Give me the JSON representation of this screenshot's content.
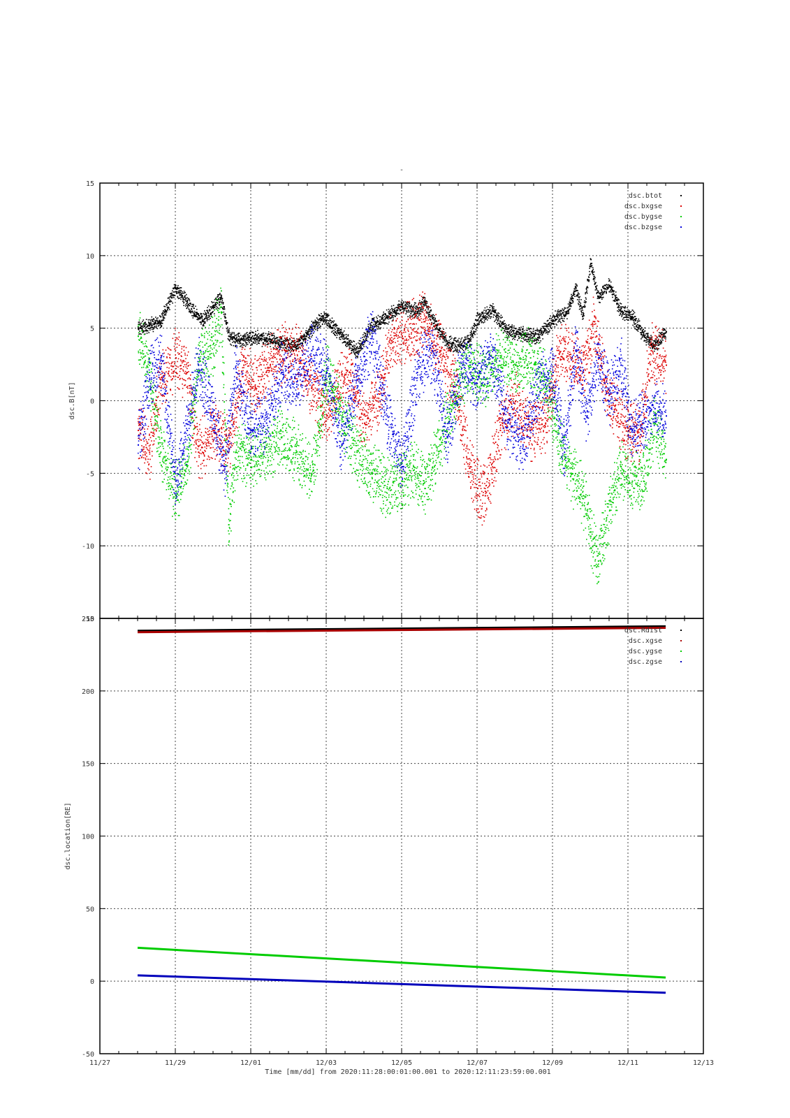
{
  "title_mark": "-",
  "x_axis": {
    "label": "Time [mm/dd]  from 2020:11:28:00:01:00.001  to  2020:12:11:23:59:00.001",
    "tick_labels": [
      "11/27",
      "11/29",
      "12/01",
      "12/03",
      "12/05",
      "12/07",
      "12/09",
      "12/11",
      "12/13"
    ],
    "tick_days": [
      0,
      2,
      4,
      6,
      8,
      10,
      12,
      14,
      16
    ],
    "range_days": [
      0,
      16
    ],
    "data_range_days": [
      1.0,
      15.0
    ]
  },
  "colors": {
    "black": "#000000",
    "red": "#dd0000",
    "green": "#00cc00",
    "blue": "#0000dd",
    "darkred": "#aa0000"
  },
  "chart_data": [
    {
      "type": "scatter",
      "panel": "top",
      "ylabel": "dsc.B[nT]",
      "ylim": [
        -15,
        15
      ],
      "yticks": [
        -15,
        -10,
        -5,
        0,
        5,
        10,
        15
      ],
      "grid": true,
      "legend_position": "top-right",
      "series": [
        {
          "name": "dsc.btot",
          "color": "#000000",
          "x_days": [
            1.0,
            1.3,
            1.6,
            2.0,
            2.3,
            2.7,
            3.0,
            3.2,
            3.4,
            3.6,
            3.8,
            4.0,
            4.4,
            4.8,
            5.2,
            5.6,
            5.9,
            6.0,
            6.4,
            6.8,
            7.2,
            7.5,
            7.8,
            8.0,
            8.4,
            8.6,
            8.9,
            9.2,
            9.5,
            9.8,
            10.0,
            10.4,
            10.8,
            11.2,
            11.6,
            12.0,
            12.4,
            12.6,
            12.8,
            13.0,
            13.2,
            13.5,
            13.8,
            14.1,
            14.4,
            14.7,
            15.0
          ],
          "values": [
            5.0,
            5.2,
            5.5,
            7.8,
            6.8,
            5.5,
            6.5,
            7.2,
            4.5,
            4.2,
            4.3,
            4.4,
            4.3,
            4.0,
            3.8,
            5.0,
            5.8,
            5.6,
            4.5,
            3.4,
            5.2,
            5.6,
            6.2,
            6.5,
            6.2,
            6.8,
            5.2,
            4.0,
            3.8,
            4.2,
            5.6,
            6.2,
            4.8,
            4.6,
            4.4,
            5.6,
            6.2,
            7.8,
            6.0,
            9.5,
            7.2,
            8.0,
            6.2,
            5.8,
            4.6,
            3.8,
            4.8
          ]
        },
        {
          "name": "dsc.bxgse",
          "color": "#dd0000",
          "x_days": [
            1.0,
            1.3,
            1.6,
            2.0,
            2.3,
            2.6,
            3.0,
            3.4,
            3.8,
            4.1,
            4.5,
            4.9,
            5.3,
            5.6,
            6.0,
            6.3,
            6.6,
            7.0,
            7.4,
            7.7,
            8.0,
            8.3,
            8.6,
            9.0,
            9.4,
            9.8,
            10.0,
            10.2,
            10.6,
            11.0,
            11.4,
            11.8,
            12.2,
            12.5,
            12.8,
            13.1,
            13.4,
            13.7,
            14.0,
            14.3,
            14.6,
            15.0
          ],
          "values": [
            -2.0,
            -3.5,
            1.5,
            3.0,
            2.0,
            -3.5,
            -2.0,
            -3.0,
            2.5,
            1.0,
            2.5,
            3.5,
            3.0,
            1.0,
            -1.0,
            1.0,
            2.0,
            -1.5,
            0.5,
            4.0,
            4.5,
            5.0,
            5.5,
            3.5,
            1.0,
            -4.5,
            -6.0,
            -6.5,
            -2.0,
            0.0,
            -2.0,
            -1.5,
            4.0,
            3.0,
            2.0,
            5.5,
            1.0,
            -1.0,
            -2.0,
            -2.5,
            3.5,
            2.5
          ]
        },
        {
          "name": "dsc.bygse",
          "color": "#00cc00",
          "x_days": [
            1.0,
            1.3,
            1.6,
            2.0,
            2.3,
            2.6,
            3.0,
            3.2,
            3.4,
            3.6,
            4.0,
            4.4,
            4.8,
            5.2,
            5.6,
            5.8,
            6.0,
            6.4,
            6.8,
            7.2,
            7.6,
            8.0,
            8.3,
            8.6,
            9.0,
            9.4,
            9.8,
            10.2,
            10.6,
            11.0,
            11.4,
            11.8,
            12.2,
            12.5,
            12.8,
            13.0,
            13.2,
            13.5,
            13.8,
            14.1,
            14.4,
            14.7,
            15.0
          ],
          "values": [
            4.5,
            2.0,
            -3.5,
            -6.5,
            -4.5,
            2.5,
            4.0,
            6.5,
            -8.5,
            -3.5,
            -4.0,
            -3.5,
            -2.5,
            -3.5,
            -5.0,
            -2.0,
            2.0,
            -1.0,
            -3.5,
            -5.0,
            -6.0,
            -5.5,
            -4.5,
            -6.0,
            -3.0,
            0.5,
            2.5,
            1.5,
            3.0,
            2.5,
            3.0,
            1.5,
            -3.0,
            -5.0,
            -6.5,
            -9.0,
            -11.0,
            -7.5,
            -4.5,
            -5.5,
            -5.5,
            -1.5,
            -4.0
          ]
        },
        {
          "name": "dsc.bzgse",
          "color": "#0000dd",
          "x_days": [
            1.0,
            1.3,
            1.6,
            2.0,
            2.3,
            2.6,
            3.0,
            3.3,
            3.6,
            4.0,
            4.4,
            4.8,
            5.2,
            5.6,
            6.0,
            6.4,
            6.8,
            7.2,
            7.6,
            8.0,
            8.4,
            8.8,
            9.2,
            9.6,
            10.0,
            10.4,
            10.8,
            11.2,
            11.6,
            12.0,
            12.3,
            12.6,
            12.9,
            13.2,
            13.5,
            13.8,
            14.1,
            14.4,
            14.7,
            15.0
          ],
          "values": [
            -3.0,
            1.5,
            3.0,
            -5.5,
            -2.0,
            2.5,
            -1.0,
            -4.5,
            2.0,
            -2.0,
            -1.5,
            2.0,
            1.0,
            3.5,
            2.0,
            -3.0,
            1.5,
            4.5,
            -1.0,
            -4.5,
            2.0,
            3.5,
            -2.5,
            2.5,
            1.5,
            3.0,
            -1.5,
            -3.0,
            1.0,
            2.0,
            -3.5,
            3.5,
            -1.0,
            3.0,
            0.5,
            2.5,
            -2.0,
            -1.5,
            -0.5,
            -1.0
          ]
        }
      ]
    },
    {
      "type": "line",
      "panel": "bottom",
      "ylabel": "dsc.location[RE]",
      "ylim": [
        -50,
        250
      ],
      "yticks": [
        -50,
        0,
        50,
        100,
        150,
        200,
        250
      ],
      "grid": true,
      "legend_position": "top-right",
      "series": [
        {
          "name": "dsc.Rdist",
          "color": "#000000",
          "x_days": [
            1.0,
            15.0
          ],
          "values": [
            241.5,
            244.5
          ]
        },
        {
          "name": "dsc.xgse",
          "color": "#aa0000",
          "x_days": [
            1.0,
            15.0
          ],
          "values": [
            240.5,
            243.5
          ]
        },
        {
          "name": "dsc.ygse",
          "color": "#00cc00",
          "x_days": [
            1.0,
            15.0
          ],
          "values": [
            23.0,
            2.5
          ]
        },
        {
          "name": "dsc.zgse",
          "color": "#0000bb",
          "x_days": [
            1.0,
            15.0
          ],
          "values": [
            4.0,
            -8.0
          ]
        }
      ]
    }
  ]
}
